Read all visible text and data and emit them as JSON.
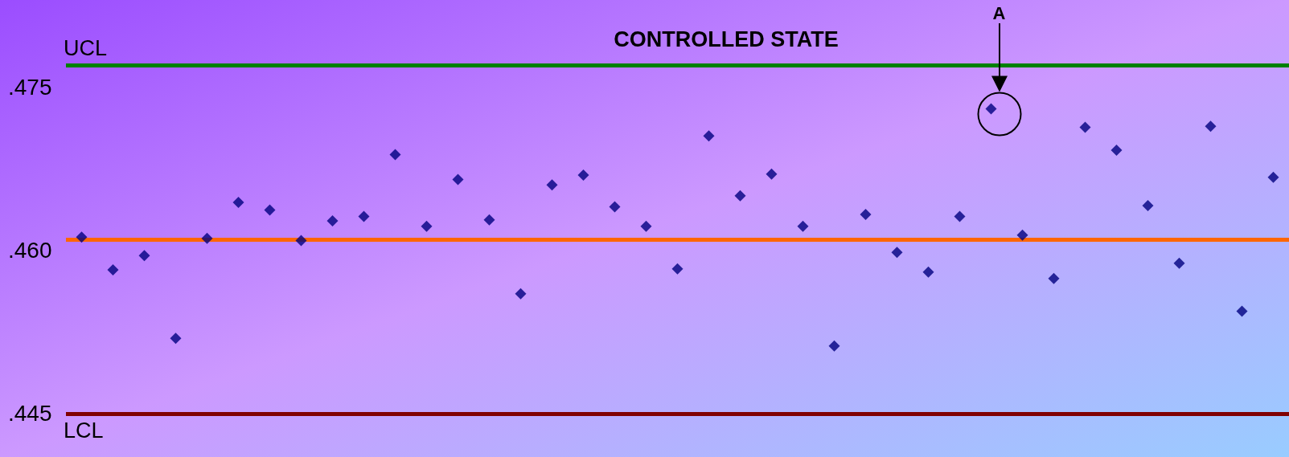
{
  "chart_data": {
    "type": "scatter",
    "title": "CONTROLLED STATE",
    "categories": [
      null,
      null,
      null,
      null,
      null,
      null,
      null,
      null,
      null,
      null,
      null,
      null,
      null,
      null,
      null,
      null,
      null,
      null,
      null,
      null,
      null,
      null,
      null,
      null,
      null,
      null,
      null,
      null,
      null,
      null,
      null,
      null,
      null,
      null,
      null,
      null,
      null,
      null,
      null
    ],
    "series": [
      {
        "color": "#000080",
        "values": [
          0.4612,
          0.4582,
          0.4595,
          0.4519,
          0.4611,
          0.4644,
          0.4637,
          0.4609,
          0.4627,
          0.4631,
          0.4688,
          0.4622,
          0.4665,
          0.4628,
          0.456,
          0.466,
          0.4669,
          0.464,
          0.4622,
          0.4583,
          0.4705,
          0.465,
          0.467,
          0.4622,
          0.4512,
          0.4633,
          0.4598,
          0.458,
          0.4631,
          0.473,
          0.4614,
          0.4574,
          0.4713,
          0.4692,
          0.4641,
          0.4588,
          0.4714,
          0.4544,
          0.4667
        ]
      }
    ],
    "ylim": [
      0.441,
      0.483
    ],
    "yticks": [
      {
        "value": 0.445,
        "label": ".445"
      },
      {
        "value": 0.46,
        "label": ".460"
      },
      {
        "value": 0.475,
        "label": ".475"
      }
    ],
    "ref_lines": [
      {
        "axis": "y",
        "value": 0.477,
        "label": "UCL",
        "color": "#008000"
      },
      {
        "axis": "y",
        "value": 0.461,
        "label": null,
        "color": "#ff6600"
      },
      {
        "axis": "y",
        "value": 0.445,
        "label": "LCL",
        "color": "#800000"
      }
    ],
    "annotations": [
      "A"
    ],
    "marker": "diamond",
    "grid": false,
    "tick_labels": "y"
  }
}
